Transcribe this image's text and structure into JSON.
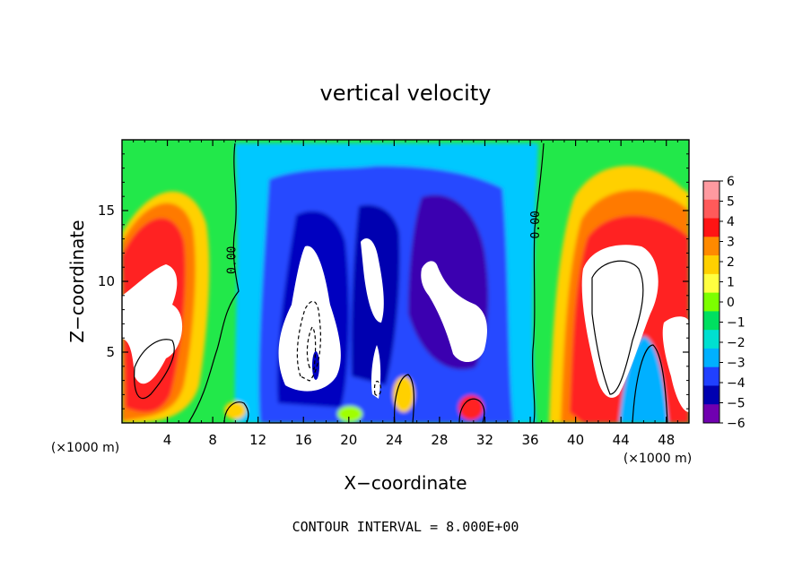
{
  "chart_data": {
    "type": "heatmap",
    "title": "vertical velocity",
    "xlabel": "X−coordinate",
    "ylabel": "Z−coordinate",
    "x_unit_left": "(×1000 m)",
    "x_unit_right": "(×1000 m)",
    "footer": "CONTOUR INTERVAL = 8.000E+00",
    "xlim": [
      0,
      50
    ],
    "ylim": [
      0,
      20
    ],
    "x_ticks": [
      4,
      8,
      12,
      16,
      20,
      24,
      28,
      32,
      36,
      40,
      44,
      48
    ],
    "y_ticks": [
      5,
      10,
      15
    ],
    "contour_labels": [
      {
        "text": "0.00",
        "x": 10,
        "y": 11.5
      },
      {
        "text": "0.00",
        "x": 36.8,
        "y": 14
      }
    ],
    "colorbar": {
      "min": -6,
      "max": 6,
      "tick_labels": [
        "6",
        "5",
        "4",
        "3",
        "2",
        "1",
        "0",
        "−1",
        "−2",
        "−3",
        "−4",
        "−5",
        "−6"
      ],
      "colors": [
        "#ff9aa0",
        "#ff5a5a",
        "#ff1414",
        "#ff8a00",
        "#ffd000",
        "#ffff40",
        "#7cff00",
        "#00e060",
        "#00e0d0",
        "#00b0ff",
        "#2040ff",
        "#0000b0",
        "#7000b0"
      ]
    },
    "features": [
      {
        "name": "updraft-left",
        "x": 3,
        "z": 9,
        "peak": 6
      },
      {
        "name": "downdraft-center-1",
        "x": 17,
        "z": 7,
        "peak": -6
      },
      {
        "name": "downdraft-center-2",
        "x": 23,
        "z": 11,
        "peak": -6
      },
      {
        "name": "downdraft-center-3",
        "x": 29.5,
        "z": 9,
        "peak": -6
      },
      {
        "name": "updraft-right",
        "x": 44,
        "z": 9,
        "peak": 6
      }
    ]
  }
}
